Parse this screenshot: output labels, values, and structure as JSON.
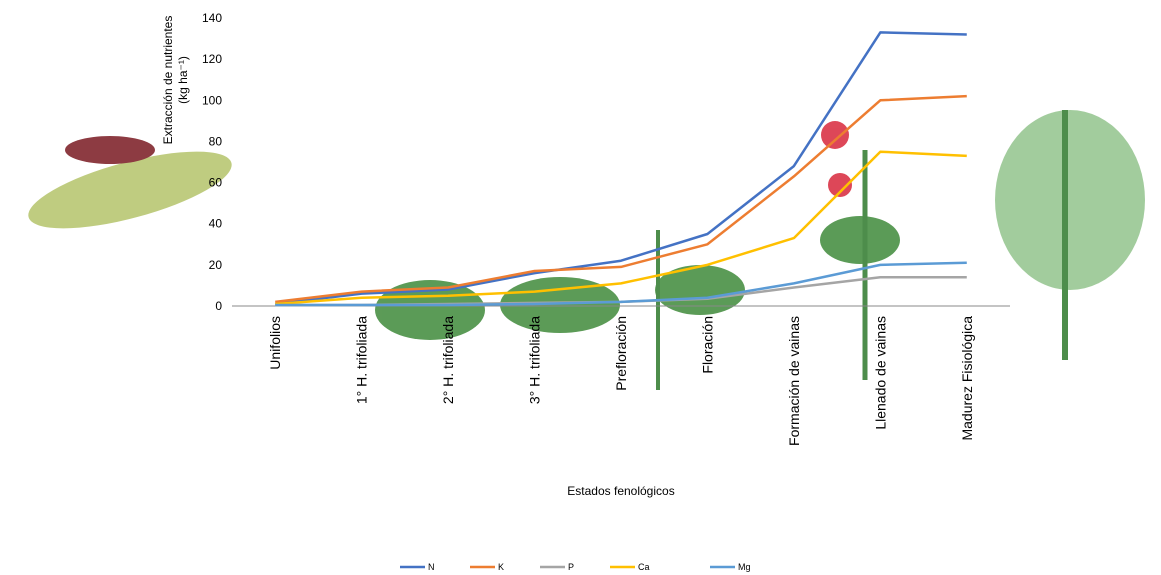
{
  "chart_data": {
    "type": "line",
    "y_label": [
      "Extracción de nutrientes",
      "(kg ha⁻¹)"
    ],
    "x_label": "Estados fenológicos",
    "categories": [
      "Unifolios",
      "1° H. trifoliada",
      "2° H. trifoliada",
      "3° H. trifoliada",
      "Prefloración",
      "Floración",
      "Formación de vainas",
      "Llenado de vainas",
      "Madurez Fisiológica"
    ],
    "series": [
      {
        "name": "N",
        "color": "#4472c4",
        "values": [
          1,
          6,
          8,
          16,
          22,
          35,
          68,
          133,
          132
        ]
      },
      {
        "name": "K",
        "color": "#ed7d31",
        "values": [
          2,
          7,
          9,
          17,
          19,
          30,
          63,
          100,
          102
        ]
      },
      {
        "name": "P",
        "color": "#a5a5a5",
        "values": [
          0.5,
          0.5,
          1,
          1.5,
          2,
          3.5,
          9,
          14,
          14
        ]
      },
      {
        "name": "Ca",
        "color": "#ffc000",
        "values": [
          1,
          4,
          5,
          7,
          11,
          20,
          33,
          75,
          73
        ]
      },
      {
        "name": "Mg",
        "color": "#5b9bd5",
        "values": [
          0.5,
          0.5,
          0.5,
          1,
          2,
          4,
          11,
          20,
          21
        ]
      }
    ],
    "ylim": [
      0,
      140
    ],
    "yticks": [
      0,
      20,
      40,
      60,
      80,
      100,
      120,
      140
    ],
    "legend": "bottom"
  }
}
